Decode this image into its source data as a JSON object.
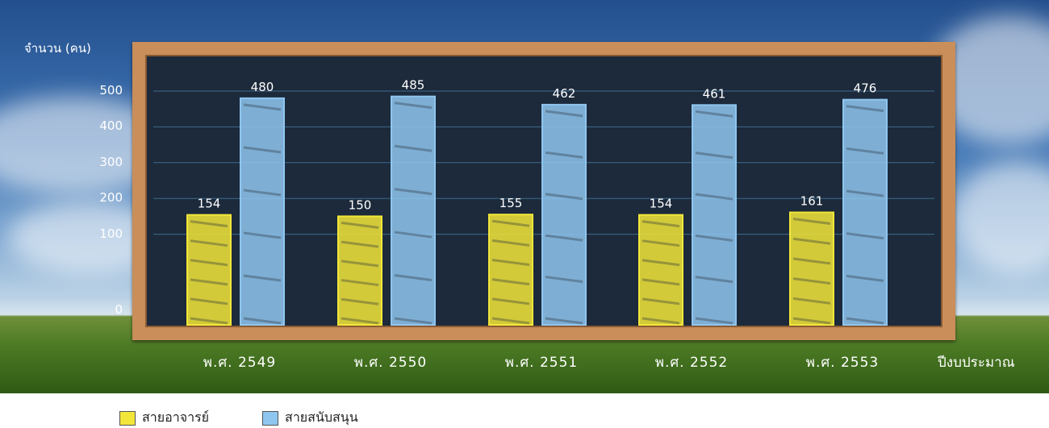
{
  "chart_data": {
    "type": "bar",
    "categories": [
      "พ.ศ. 2549",
      "พ.ศ. 2550",
      "พ.ศ. 2551",
      "พ.ศ. 2552",
      "พ.ศ. 2553"
    ],
    "series": [
      {
        "name": "สายอาจารย์",
        "values": [
          154,
          150,
          155,
          154,
          161
        ],
        "color": "#f2e63a"
      },
      {
        "name": "สายสนับสนุน",
        "values": [
          480,
          485,
          462,
          461,
          476
        ],
        "color": "#8fc6ef"
      }
    ],
    "ylabel": "จำนวน (คน)",
    "xlabel": "ปีงบประมาณ",
    "yticks": [
      0,
      100,
      200,
      300,
      400,
      500
    ],
    "ylim": [
      0,
      500
    ],
    "grid": true,
    "legend_position": "bottom-left"
  }
}
